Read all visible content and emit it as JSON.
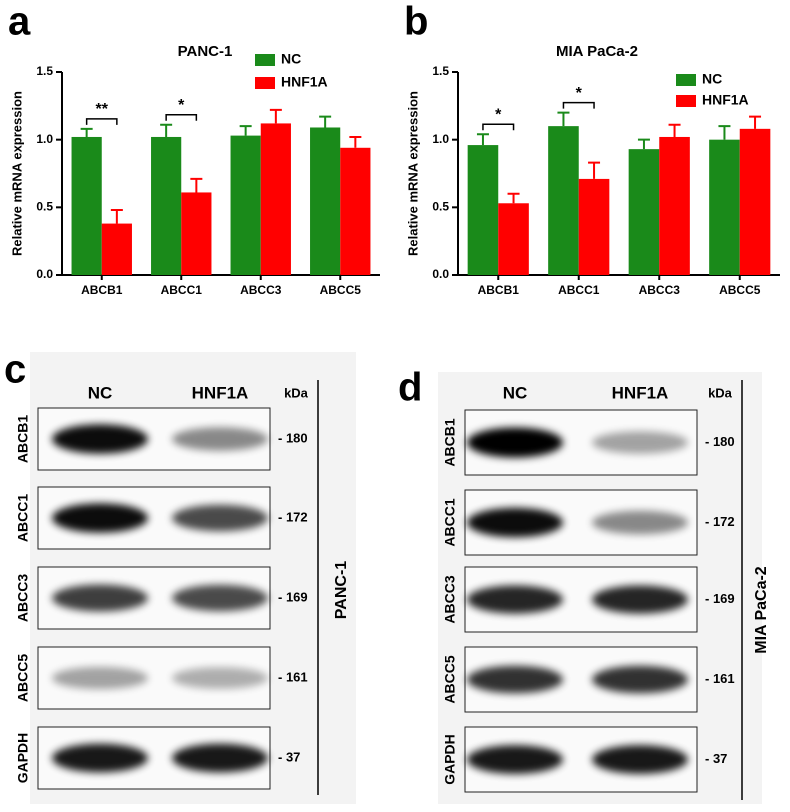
{
  "chart_data": [
    {
      "type": "bar",
      "panel_label": "a",
      "title": "PANC-1",
      "y_label": "Relative mRNA  expression",
      "categories": [
        "ABCB1",
        "ABCC1",
        "ABCC3",
        "ABCC5"
      ],
      "series": [
        {
          "name": "NC",
          "color": "#1a8a1a",
          "values": [
            1.02,
            1.02,
            1.03,
            1.09
          ],
          "errors": [
            0.06,
            0.09,
            0.07,
            0.08
          ]
        },
        {
          "name": "HNF1A",
          "color": "#ff0000",
          "values": [
            0.38,
            0.61,
            1.12,
            0.94
          ],
          "errors": [
            0.1,
            0.1,
            0.1,
            0.08
          ]
        }
      ],
      "annotations": [
        "**",
        "*",
        null,
        null
      ],
      "ylim": [
        0,
        1.5
      ],
      "yticks": [
        {
          "value": 0,
          "label": "0.0"
        },
        0.5,
        {
          "value": 1,
          "label": "1.0"
        },
        1.5
      ]
    },
    {
      "type": "bar",
      "panel_label": "b",
      "title": "MIA PaCa-2",
      "y_label": "Relative mRNA  expression",
      "categories": [
        "ABCB1",
        "ABCC1",
        "ABCC3",
        "ABCC5"
      ],
      "series": [
        {
          "name": "NC",
          "color": "#1a8a1a",
          "values": [
            0.96,
            1.1,
            0.93,
            1.0
          ],
          "errors": [
            0.08,
            0.1,
            0.07,
            0.1
          ]
        },
        {
          "name": "HNF1A",
          "color": "#ff0000",
          "values": [
            0.53,
            0.71,
            1.02,
            1.08
          ],
          "errors": [
            0.07,
            0.12,
            0.09,
            0.09
          ]
        }
      ],
      "annotations": [
        "*",
        "*",
        null,
        null
      ],
      "ylim": [
        0,
        1.5
      ],
      "yticks": [
        {
          "value": 0,
          "label": "0.0"
        },
        0.5,
        {
          "value": 1,
          "label": "1.0"
        },
        1.5
      ]
    }
  ],
  "blots": [
    {
      "panel_label": "c",
      "columns": [
        "NC",
        "HNF1A"
      ],
      "unit": "kDa",
      "cell_line": "PANC-1",
      "rows": [
        {
          "protein": "ABCB1",
          "size": "- 180"
        },
        {
          "protein": "ABCC1",
          "size": "- 172"
        },
        {
          "protein": "ABCC3",
          "size": "- 169"
        },
        {
          "protein": "ABCC5",
          "size": "- 161"
        },
        {
          "protein": "GAPDH",
          "size": "- 37"
        }
      ]
    },
    {
      "panel_label": "d",
      "columns": [
        "NC",
        "HNF1A"
      ],
      "unit": "kDa",
      "cell_line": "MIA PaCa-2",
      "rows": [
        {
          "protein": "ABCB1",
          "size": "- 180"
        },
        {
          "protein": "ABCC1",
          "size": "- 172"
        },
        {
          "protein": "ABCC3",
          "size": "- 169"
        },
        {
          "protein": "ABCC5",
          "size": "- 161"
        },
        {
          "protein": "GAPDH",
          "size": "- 37"
        }
      ]
    }
  ]
}
